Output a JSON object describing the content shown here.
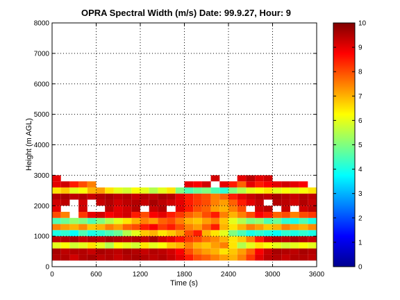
{
  "chart_data": {
    "type": "heatmap",
    "title": "OPRA Spectral Width (m/s)  Date: 99.9.27, Hour: 9",
    "xlabel": "Time (s)",
    "ylabel": "Height (m AGL)",
    "xlim": [
      0,
      3600
    ],
    "ylim": [
      0,
      8000
    ],
    "xticks": [
      "0",
      "600",
      "1200",
      "1800",
      "2400",
      "3000",
      "3600"
    ],
    "yticks": [
      "0",
      "1000",
      "2000",
      "3000",
      "4000",
      "5000",
      "6000",
      "7000",
      "8000"
    ],
    "grid": true,
    "colorbar": {
      "clim": [
        0,
        10
      ],
      "ticks": [
        "0",
        "1",
        "2",
        "3",
        "4",
        "5",
        "6",
        "7",
        "8",
        "9",
        "10"
      ],
      "colormap": "jet"
    },
    "time_bins": [
      0,
      120,
      240,
      360,
      480,
      600,
      720,
      840,
      960,
      1080,
      1200,
      1320,
      1440,
      1560,
      1680,
      1800,
      1920,
      2040,
      2160,
      2280,
      2400,
      2520,
      2640,
      2760,
      2880,
      3000,
      3120,
      3240,
      3360,
      3480
    ],
    "height_bins": [
      300,
      500,
      700,
      900,
      1100,
      1300,
      1500,
      1700,
      1900,
      2100,
      2300,
      2500,
      2700,
      2900
    ],
    "values": [
      [
        9.5,
        9.5,
        9.2,
        9.5,
        9.6,
        9.4,
        9.5,
        9.3,
        9.5,
        9.6,
        9.5,
        9.4,
        9.5,
        9.3,
        9.0,
        8.5,
        8.0,
        7.8,
        7.5,
        7.2,
        7.0,
        7.5,
        8.2,
        9.0,
        9.4,
        9.5,
        9.3,
        9.5,
        9.5,
        9.4
      ],
      [
        9.6,
        9.4,
        9.5,
        9.5,
        9.3,
        9.6,
        9.5,
        9.4,
        9.6,
        9.5,
        9.3,
        9.5,
        9.4,
        9.2,
        8.8,
        8.0,
        7.5,
        7.2,
        7.0,
        6.5,
        6.8,
        7.2,
        7.8,
        8.8,
        9.3,
        9.6,
        9.5,
        9.4,
        9.6,
        9.5
      ],
      [
        6.0,
        6.2,
        5.8,
        6.0,
        6.5,
        6.0,
        5.5,
        6.2,
        6.0,
        5.8,
        6.5,
        6.0,
        6.2,
        6.8,
        7.0,
        7.5,
        7.0,
        6.8,
        7.2,
        7.5,
        6.5,
        5.5,
        6.0,
        6.5,
        6.2,
        6.0,
        5.8,
        6.0,
        6.2,
        6.0
      ],
      [
        9.4,
        9.5,
        9.6,
        9.3,
        9.5,
        9.4,
        9.6,
        9.5,
        9.4,
        9.5,
        9.3,
        9.6,
        9.2,
        9.0,
        8.6,
        8.2,
        8.0,
        7.6,
        7.4,
        7.0,
        6.5,
        6.8,
        7.5,
        8.5,
        9.2,
        9.5,
        9.4,
        9.6,
        9.5,
        9.3
      ],
      [
        4.0,
        4.2,
        3.8,
        4.5,
        4.0,
        4.2,
        4.5,
        4.8,
        5.5,
        6.0,
        6.8,
        7.0,
        6.5,
        6.8,
        7.2,
        8.0,
        8.5,
        7.0,
        6.5,
        6.0,
        5.0,
        4.5,
        4.0,
        4.2,
        4.0,
        3.8,
        4.2,
        4.0,
        4.2,
        4.0
      ],
      [
        7.5,
        7.2,
        7.0,
        7.4,
        6.8,
        7.0,
        7.5,
        7.2,
        7.8,
        8.0,
        8.5,
        8.8,
        8.2,
        8.5,
        8.0,
        7.5,
        7.2,
        7.8,
        8.5,
        7.0,
        6.5,
        7.0,
        7.5,
        7.2,
        6.8,
        7.0,
        7.5,
        7.2,
        7.0,
        7.4
      ],
      [
        4.5,
        4.8,
        5.2,
        5.0,
        4.5,
        5.0,
        5.5,
        6.0,
        6.5,
        7.0,
        7.5,
        7.2,
        7.8,
        8.0,
        7.5,
        7.0,
        6.8,
        7.2,
        7.5,
        6.8,
        6.0,
        5.5,
        5.0,
        5.2,
        4.5,
        4.8,
        4.2,
        4.0,
        4.5,
        4.0
      ],
      [
        8.0,
        7.5,
        null,
        8.2,
        9.0,
        9.2,
        8.8,
        9.0,
        9.2,
        8.5,
        8.0,
        8.8,
        9.0,
        8.5,
        8.2,
        7.8,
        7.5,
        8.0,
        8.5,
        7.5,
        7.0,
        7.5,
        8.0,
        8.8,
        8.5,
        7.8,
        8.0,
        7.5,
        8.0,
        8.2
      ],
      [
        9.0,
        null,
        null,
        9.2,
        null,
        null,
        9.4,
        9.0,
        9.2,
        9.5,
        null,
        9.3,
        9.5,
        null,
        9.0,
        8.5,
        8.0,
        7.8,
        7.2,
        7.0,
        7.5,
        8.0,
        null,
        9.2,
        9.4,
        null,
        9.3,
        null,
        9.2,
        9.4
      ],
      [
        9.2,
        9.4,
        null,
        9.2,
        null,
        9.3,
        9.5,
        9.2,
        9.4,
        9.5,
        9.3,
        9.6,
        9.4,
        9.2,
        9.0,
        8.5,
        8.2,
        8.0,
        7.5,
        7.2,
        7.8,
        8.5,
        9.0,
        9.3,
        null,
        9.5,
        9.4,
        9.2,
        9.5,
        9.3
      ],
      [
        9.5,
        9.6,
        9.4,
        9.5,
        9.3,
        9.5,
        9.6,
        9.4,
        9.5,
        9.3,
        9.5,
        9.4,
        9.6,
        9.5,
        9.0,
        8.5,
        8.2,
        8.0,
        7.5,
        7.8,
        8.5,
        9.0,
        9.3,
        9.5,
        9.4,
        9.6,
        9.5,
        9.3,
        9.5,
        9.4
      ],
      [
        6.5,
        6.8,
        6.0,
        6.2,
        7.0,
        7.2,
        6.5,
        6.0,
        5.8,
        6.2,
        6.0,
        5.5,
        6.0,
        6.5,
        5.0,
        4.5,
        4.8,
        5.0,
        4.5,
        4.2,
        5.0,
        5.5,
        6.0,
        6.2,
        6.5,
        6.0,
        6.2,
        6.0,
        6.2,
        6.5
      ],
      [
        9.0,
        9.2,
        8.5,
        8.0,
        7.5,
        null,
        null,
        null,
        null,
        null,
        null,
        null,
        null,
        null,
        null,
        9.0,
        8.8,
        9.2,
        null,
        9.0,
        8.5,
        7.8,
        9.0,
        8.5,
        8.8,
        9.0,
        9.2,
        9.0,
        8.8,
        null
      ],
      [
        9.0,
        null,
        null,
        null,
        null,
        null,
        null,
        null,
        null,
        null,
        null,
        null,
        null,
        null,
        null,
        null,
        null,
        null,
        9.2,
        null,
        null,
        9.0,
        9.4,
        9.0,
        9.2,
        null,
        null,
        null,
        null,
        null
      ]
    ]
  }
}
